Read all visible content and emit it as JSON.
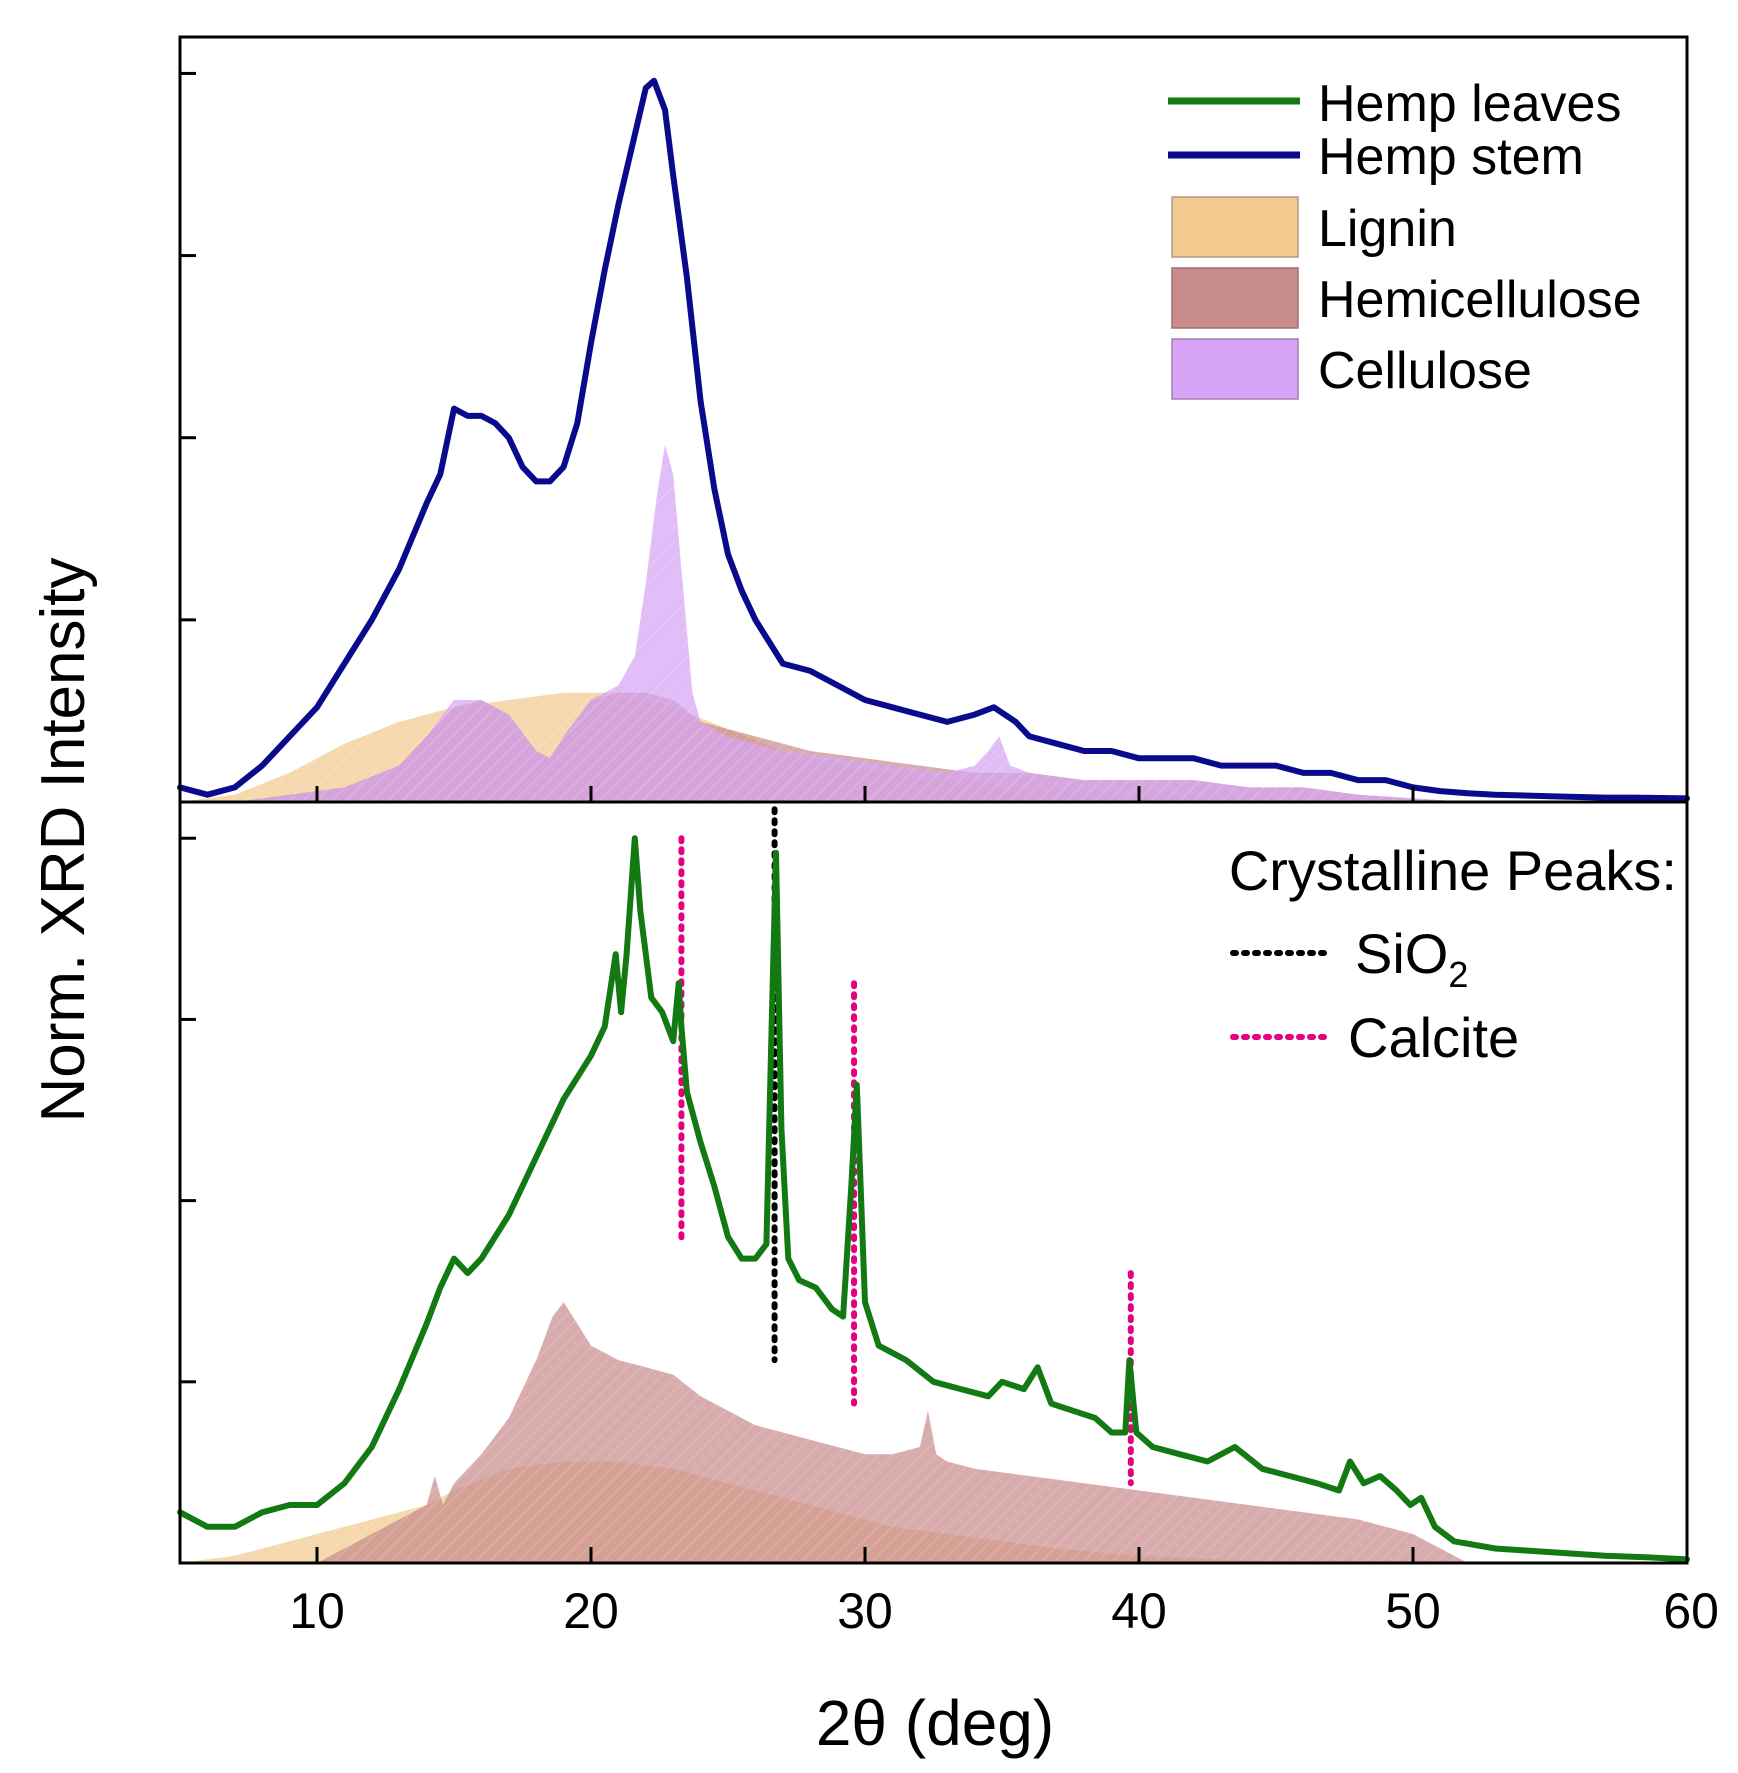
{
  "chart_data": {
    "type": "line",
    "layout": "two stacked panels sharing x axis",
    "xlabel": "2θ (deg)",
    "ylabel": "Norm. XRD Intensity",
    "xlim": [
      5,
      60
    ],
    "xticks": [
      "10",
      "20",
      "30",
      "40",
      "50",
      "60"
    ],
    "xtick_values": [
      10,
      20,
      30,
      40,
      50,
      60
    ],
    "panels": [
      {
        "name": "top",
        "ylim": [
          0,
          1.05
        ],
        "yticks": [
          0.25,
          0.5,
          0.75,
          1.0
        ],
        "series": [
          {
            "name": "Hemp stem",
            "kind": "line",
            "color": "#0a0a8c",
            "x": [
              5,
              6,
              7,
              8,
              9,
              10,
              11,
              12,
              13,
              14,
              14.5,
              15,
              15.5,
              16,
              16.5,
              17,
              17.5,
              18,
              18.5,
              19,
              19.5,
              20,
              20.5,
              21,
              21.5,
              22,
              22.3,
              22.7,
              23,
              23.5,
              24,
              24.5,
              25,
              25.5,
              26,
              27,
              28,
              29,
              30,
              31,
              32,
              33,
              34,
              34.7,
              35.5,
              36,
              37,
              38,
              39,
              40,
              41,
              42,
              43,
              44,
              45,
              46,
              47,
              48,
              49,
              50,
              51,
              52,
              53,
              55,
              57,
              58,
              60
            ],
            "y": [
              0.02,
              0.01,
              0.02,
              0.05,
              0.09,
              0.13,
              0.19,
              0.25,
              0.32,
              0.41,
              0.45,
              0.54,
              0.53,
              0.53,
              0.52,
              0.5,
              0.46,
              0.44,
              0.44,
              0.46,
              0.52,
              0.63,
              0.73,
              0.82,
              0.9,
              0.98,
              0.99,
              0.95,
              0.86,
              0.72,
              0.55,
              0.43,
              0.34,
              0.29,
              0.25,
              0.19,
              0.18,
              0.16,
              0.14,
              0.13,
              0.12,
              0.11,
              0.12,
              0.13,
              0.11,
              0.09,
              0.08,
              0.07,
              0.07,
              0.06,
              0.06,
              0.06,
              0.05,
              0.05,
              0.05,
              0.04,
              0.04,
              0.03,
              0.03,
              0.02,
              0.015,
              0.012,
              0.01,
              0.008,
              0.006,
              0.006,
              0.005
            ]
          },
          {
            "name": "Lignin",
            "kind": "area",
            "color": "#f3c98f",
            "x": [
              5,
              7,
              9,
              11,
              13,
              15,
              17,
              19,
              21,
              23,
              25,
              27,
              29,
              31,
              33,
              35,
              37,
              40,
              43,
              46
            ],
            "y": [
              0.0,
              0.01,
              0.04,
              0.08,
              0.11,
              0.13,
              0.14,
              0.15,
              0.15,
              0.13,
              0.1,
              0.07,
              0.05,
              0.04,
              0.03,
              0.02,
              0.015,
              0.01,
              0.005,
              0.0
            ]
          },
          {
            "name": "Hemicellulose",
            "kind": "area",
            "color": "#c98c8c",
            "x": [
              7,
              9,
              11,
              13,
              14,
              15,
              16,
              17,
              18,
              18.5,
              19,
              20,
              21,
              22,
              23,
              24,
              26,
              28,
              30,
              32,
              34,
              36,
              38,
              40,
              42,
              44,
              46,
              48,
              50,
              52
            ],
            "y": [
              0.0,
              0.01,
              0.02,
              0.05,
              0.09,
              0.13,
              0.14,
              0.12,
              0.07,
              0.06,
              0.09,
              0.14,
              0.15,
              0.15,
              0.14,
              0.11,
              0.09,
              0.07,
              0.06,
              0.05,
              0.04,
              0.04,
              0.03,
              0.03,
              0.03,
              0.02,
              0.02,
              0.01,
              0.005,
              0.0
            ]
          },
          {
            "name": "Cellulose",
            "kind": "area",
            "color": "#d6a3f5",
            "x": [
              7,
              9,
              11,
              13,
              14,
              15,
              16,
              17,
              18,
              18.5,
              19,
              20,
              21,
              21.6,
              22,
              22.4,
              22.7,
              23,
              23.3,
              23.7,
              24,
              25,
              27,
              29,
              31,
              33,
              34,
              34.5,
              34.9,
              35.3,
              36,
              38,
              40,
              42,
              44,
              46,
              48,
              50,
              52
            ],
            "y": [
              0.0,
              0.01,
              0.02,
              0.05,
              0.09,
              0.14,
              0.14,
              0.12,
              0.07,
              0.06,
              0.09,
              0.14,
              0.16,
              0.2,
              0.3,
              0.42,
              0.49,
              0.45,
              0.32,
              0.15,
              0.11,
              0.09,
              0.07,
              0.06,
              0.05,
              0.04,
              0.05,
              0.07,
              0.09,
              0.05,
              0.04,
              0.03,
              0.03,
              0.03,
              0.02,
              0.02,
              0.01,
              0.005,
              0.0
            ]
          }
        ]
      },
      {
        "name": "bottom",
        "ylim": [
          0,
          1.05
        ],
        "yticks": [
          0.25,
          0.5,
          0.75,
          1.0
        ],
        "series": [
          {
            "name": "Hemp leaves",
            "kind": "line",
            "color": "#137a13",
            "x": [
              5,
              6,
              7,
              8,
              9,
              10,
              11,
              12,
              13,
              14,
              14.5,
              15,
              15.5,
              16,
              17,
              18,
              19,
              20,
              20.5,
              20.9,
              21.1,
              21.3,
              21.6,
              21.8,
              22.2,
              22.6,
              23.0,
              23.2,
              23.3,
              23.5,
              24.0,
              24.5,
              25.0,
              25.5,
              26.0,
              26.4,
              26.6,
              26.75,
              26.95,
              27.2,
              27.6,
              28.2,
              28.8,
              29.2,
              29.5,
              29.7,
              30.0,
              30.5,
              31.5,
              32.5,
              33.5,
              34.5,
              35.0,
              35.8,
              36.3,
              36.8,
              37.6,
              38.4,
              39.0,
              39.5,
              39.65,
              39.9,
              40.5,
              41.5,
              42.5,
              43.5,
              44.5,
              45.5,
              46.5,
              47.3,
              47.7,
              48.2,
              48.8,
              49.4,
              49.9,
              50.3,
              50.8,
              51.5,
              53.0,
              55.0,
              57.0,
              58.5,
              60.0
            ],
            "y": [
              0.07,
              0.05,
              0.05,
              0.07,
              0.08,
              0.08,
              0.11,
              0.16,
              0.24,
              0.33,
              0.38,
              0.42,
              0.4,
              0.42,
              0.48,
              0.56,
              0.64,
              0.7,
              0.74,
              0.84,
              0.76,
              0.84,
              1.0,
              0.9,
              0.78,
              0.76,
              0.72,
              0.8,
              0.74,
              0.65,
              0.58,
              0.52,
              0.45,
              0.42,
              0.42,
              0.44,
              0.75,
              0.98,
              0.6,
              0.42,
              0.39,
              0.38,
              0.35,
              0.34,
              0.52,
              0.66,
              0.36,
              0.3,
              0.28,
              0.25,
              0.24,
              0.23,
              0.25,
              0.24,
              0.27,
              0.22,
              0.21,
              0.2,
              0.18,
              0.18,
              0.28,
              0.18,
              0.16,
              0.15,
              0.14,
              0.16,
              0.13,
              0.12,
              0.11,
              0.1,
              0.14,
              0.11,
              0.12,
              0.1,
              0.08,
              0.09,
              0.05,
              0.03,
              0.02,
              0.015,
              0.01,
              0.008,
              0.005
            ]
          },
          {
            "name": "Lignin",
            "kind": "area",
            "color": "#f3c98f",
            "x": [
              5,
              7,
              9,
              10,
              11,
              12,
              13,
              14,
              15,
              17,
              19,
              21,
              23,
              25,
              27,
              29,
              31,
              33,
              35,
              37,
              40,
              43,
              46
            ],
            "y": [
              0.0,
              0.01,
              0.03,
              0.04,
              0.05,
              0.06,
              0.07,
              0.08,
              0.1,
              0.13,
              0.14,
              0.14,
              0.13,
              0.11,
              0.09,
              0.07,
              0.05,
              0.04,
              0.03,
              0.02,
              0.01,
              0.005,
              0.0
            ]
          },
          {
            "name": "Hemicellulose",
            "kind": "area",
            "color": "#c98c8c",
            "x": [
              10,
              11,
              12,
              13,
              14,
              14.3,
              14.6,
              15,
              16,
              17,
              18,
              18.6,
              19.0,
              19.5,
              20,
              21,
              22,
              23,
              24,
              25,
              26,
              27,
              28,
              29,
              30,
              31,
              32,
              32.3,
              32.6,
              33,
              34,
              36,
              38,
              40,
              42,
              44,
              46,
              48,
              50,
              52
            ],
            "y": [
              0.0,
              0.02,
              0.04,
              0.06,
              0.08,
              0.12,
              0.08,
              0.11,
              0.15,
              0.2,
              0.28,
              0.34,
              0.36,
              0.33,
              0.3,
              0.28,
              0.27,
              0.26,
              0.23,
              0.21,
              0.19,
              0.18,
              0.17,
              0.16,
              0.15,
              0.15,
              0.16,
              0.21,
              0.15,
              0.14,
              0.13,
              0.12,
              0.11,
              0.1,
              0.09,
              0.08,
              0.07,
              0.06,
              0.04,
              0.0
            ]
          }
        ],
        "reference_lines": [
          {
            "name": "SiO2",
            "color": "#000000",
            "x": 26.7,
            "y_top": 1.04,
            "y_bottom": 0.28
          },
          {
            "name": "Calcite",
            "color": "#e6007e",
            "x": 23.3,
            "y_top": 1.0,
            "y_bottom": 0.44
          },
          {
            "name": "Calcite",
            "color": "#e6007e",
            "x": 29.6,
            "y_top": 0.8,
            "y_bottom": 0.22
          },
          {
            "name": "Calcite",
            "color": "#e6007e",
            "x": 39.7,
            "y_top": 0.4,
            "y_bottom": 0.11
          }
        ]
      }
    ]
  },
  "legend_top": [
    {
      "label": "Hemp leaves",
      "kind": "line",
      "color": "#137a13"
    },
    {
      "label": "Hemp stem",
      "kind": "line",
      "color": "#0a0a8c"
    },
    {
      "label": "Lignin",
      "kind": "patch",
      "color": "#f3c98f"
    },
    {
      "label": "Hemicellulose",
      "kind": "patch",
      "color": "#c98c8c"
    },
    {
      "label": "Cellulose",
      "kind": "patch",
      "color": "#d6a3f5"
    }
  ],
  "legend_bottom": {
    "title": "Crystalline Peaks:",
    "items": [
      {
        "label": "SiO",
        "subscript": "2",
        "color": "#000000",
        "text_color": "#000000"
      },
      {
        "label": "Calcite",
        "subscript": "",
        "color": "#e6007e",
        "text_color": "#e6007e"
      }
    ]
  }
}
